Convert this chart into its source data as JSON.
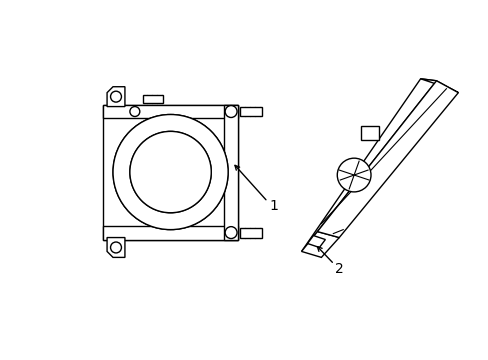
{
  "bg_color": "#ffffff",
  "line_color": "#000000",
  "line_width": 1.0,
  "label1": "1",
  "label2": "2",
  "figsize": [
    4.89,
    3.6
  ],
  "dpi": 100
}
